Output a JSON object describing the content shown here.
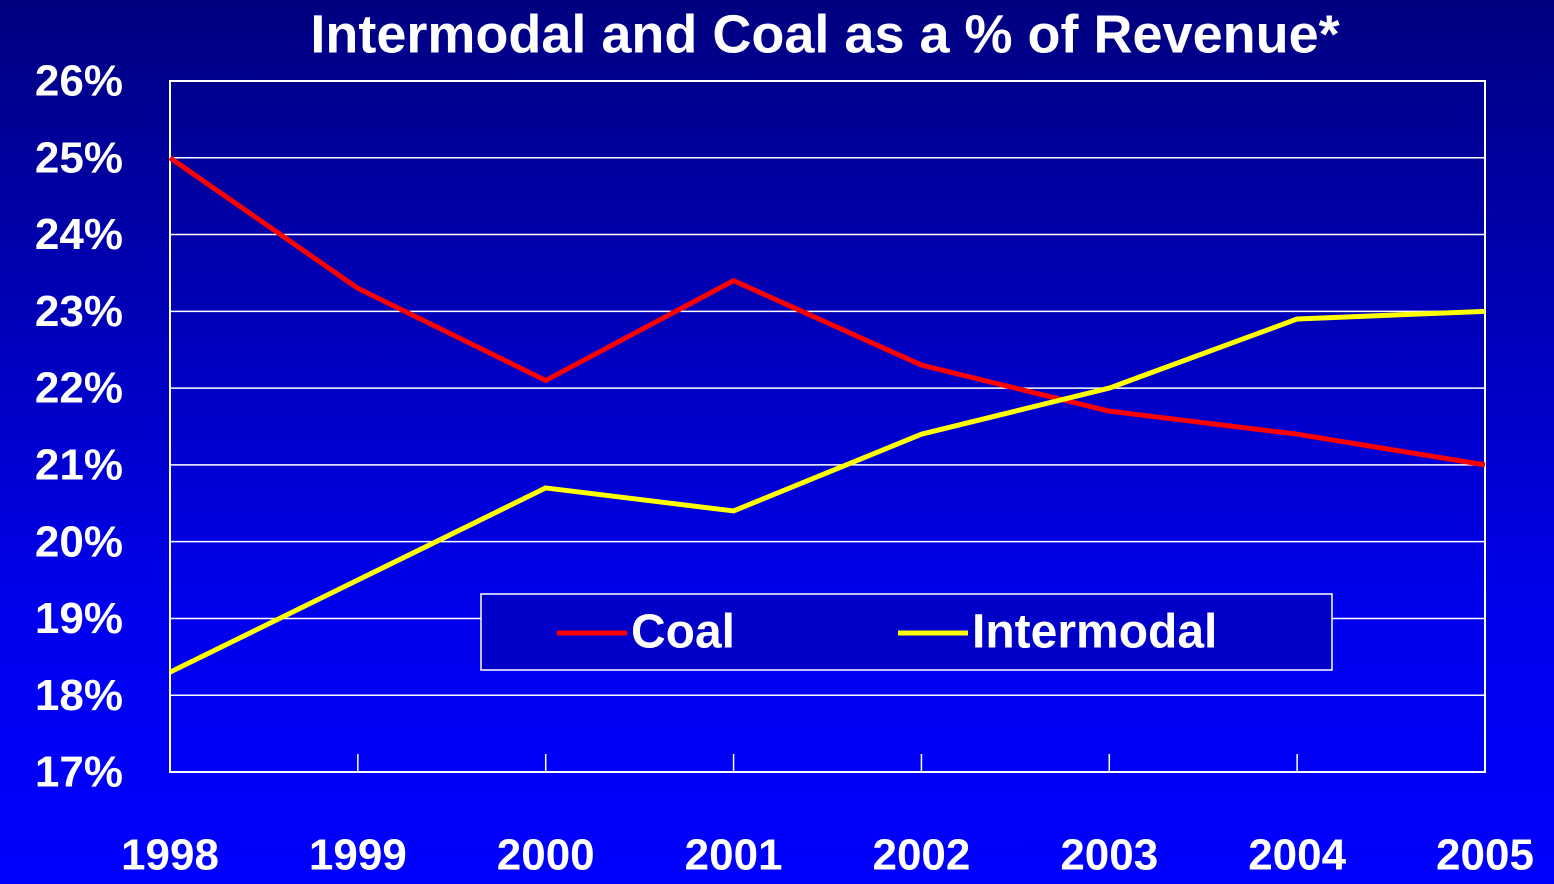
{
  "chart_data": {
    "type": "line",
    "title": "Intermodal and Coal as a % of Revenue*",
    "x": [
      1998,
      1999,
      2000,
      2001,
      2002,
      2003,
      2004,
      2005
    ],
    "xlim": [
      1998,
      2005
    ],
    "xticks": [
      1998,
      1999,
      2000,
      2001,
      2002,
      2003,
      2004,
      2005
    ],
    "ylim": [
      17,
      26
    ],
    "yticks": [
      {
        "value": 17,
        "label": "17%"
      },
      {
        "value": 18,
        "label": "18%"
      },
      {
        "value": 19,
        "label": "19%"
      },
      {
        "value": 20,
        "label": "20%"
      },
      {
        "value": 21,
        "label": "21%"
      },
      {
        "value": 22,
        "label": "22%"
      },
      {
        "value": 23,
        "label": "23%"
      },
      {
        "value": 24,
        "label": "24%"
      },
      {
        "value": 25,
        "label": "25%"
      },
      {
        "value": 26,
        "label": "26%"
      }
    ],
    "grid": true,
    "legend": "bottom",
    "series": [
      {
        "name": "Coal",
        "color": "#ff0000",
        "values": [
          25.0,
          23.3,
          22.1,
          23.4,
          22.3,
          21.7,
          21.4,
          21.0
        ]
      },
      {
        "name": "Intermodal",
        "color": "#ffff00",
        "values": [
          18.3,
          19.5,
          20.7,
          20.4,
          21.4,
          22.0,
          22.9,
          23.0
        ]
      }
    ]
  }
}
